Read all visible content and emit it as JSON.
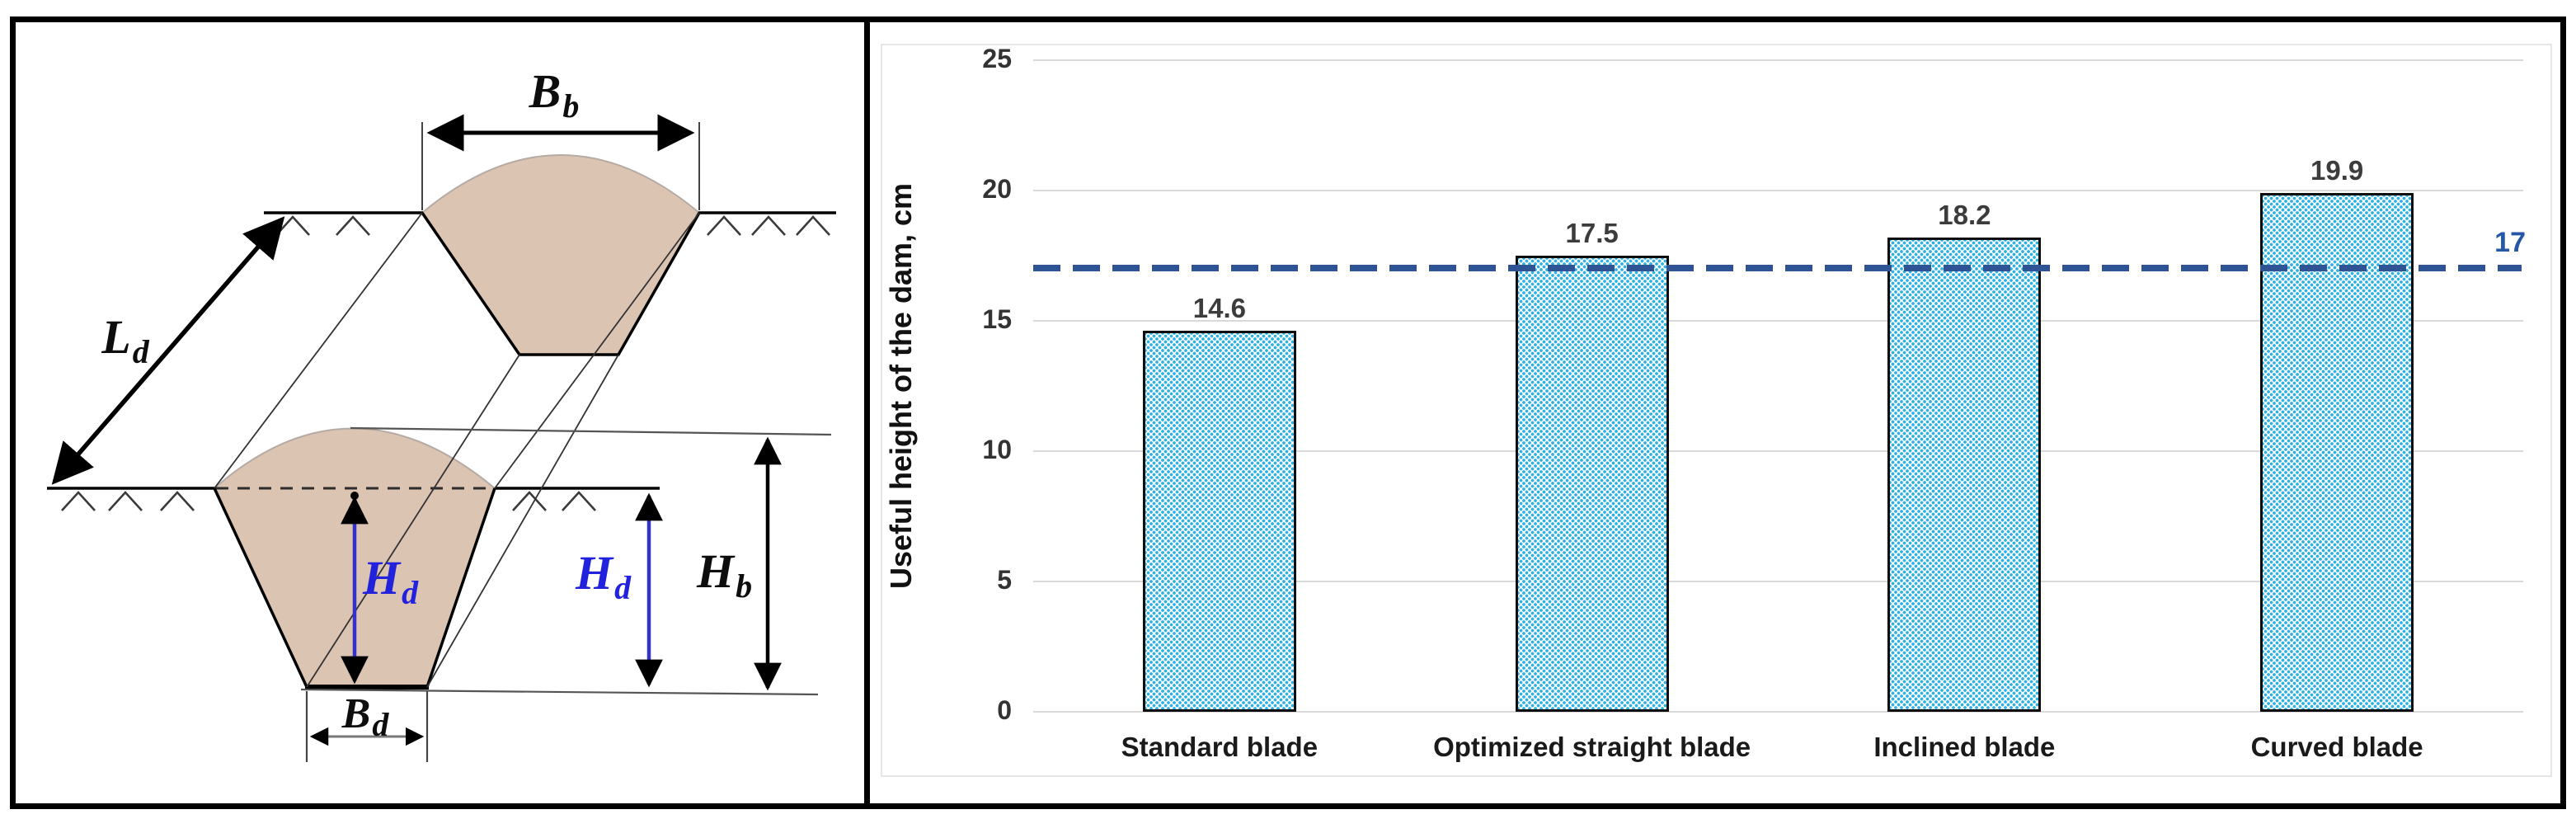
{
  "diagram": {
    "description": "Schematic of furrow dam cross-sections with dimension labels",
    "fill_color": "#dcc4b3",
    "dimension_color": "#2222dd",
    "labels": {
      "Bb": {
        "main": "B",
        "sub": "b"
      },
      "Ld": {
        "main": "L",
        "sub": "d"
      },
      "Hd_front": {
        "main": "H",
        "sub": "d"
      },
      "Hd_mid": {
        "main": "H",
        "sub": "d"
      },
      "Hb": {
        "main": "H",
        "sub": "b"
      },
      "Bd": {
        "main": "B",
        "sub": "d"
      }
    }
  },
  "chart_data": {
    "type": "bar",
    "title": "",
    "categories": [
      "Standard blade",
      "Optimized straight blade",
      "Inclined blade",
      "Curved blade"
    ],
    "values": [
      14.6,
      17.5,
      18.2,
      19.9
    ],
    "data_labels": [
      "14.6",
      "17.5",
      "18.2",
      "19.9"
    ],
    "xlabel": "",
    "ylabel": "Useful height of the dam, cm",
    "ylim": [
      0,
      25
    ],
    "yticks": [
      0,
      5,
      10,
      15,
      20,
      25
    ],
    "grid": true,
    "legend": "none",
    "reference_line": {
      "value": 17,
      "label": "17",
      "style": "dashed",
      "color": "#2f5496"
    },
    "bar_style": {
      "pattern": "dots",
      "dot_color": "#2fb1e6",
      "background": "#ffffff",
      "border_color": "#000000"
    }
  }
}
